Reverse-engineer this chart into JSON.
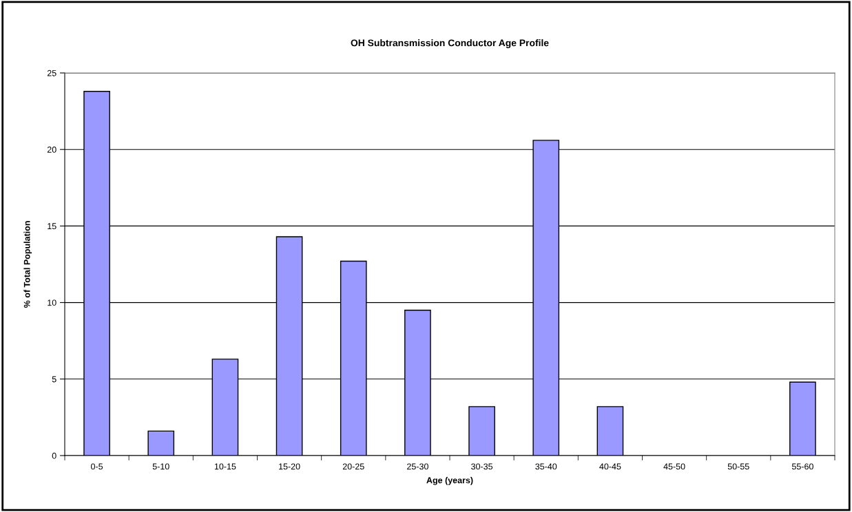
{
  "chart_data": {
    "type": "bar",
    "title": "OH Subtransmission Conductor Age Profile",
    "xlabel": "Age (years)",
    "ylabel": "% of Total Population",
    "categories": [
      "0-5",
      "5-10",
      "10-15",
      "15-20",
      "20-25",
      "25-30",
      "30-35",
      "35-40",
      "40-45",
      "45-50",
      "50-55",
      "55-60"
    ],
    "values": [
      23.8,
      1.6,
      6.3,
      14.3,
      12.7,
      9.5,
      3.2,
      20.6,
      3.2,
      0,
      0,
      4.8
    ],
    "color": "#9999ff",
    "ylim": [
      0,
      25
    ],
    "yticks": [
      0,
      5,
      10,
      15,
      20,
      25
    ],
    "grid": "y",
    "legend": false
  }
}
